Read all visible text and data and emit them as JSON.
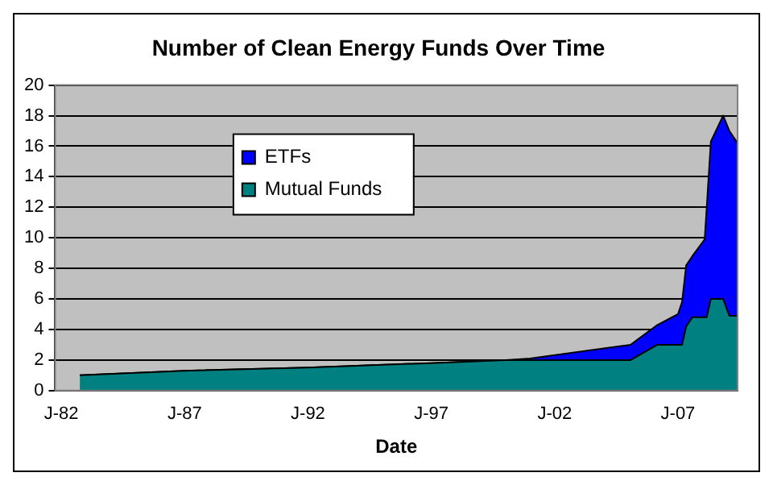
{
  "chart_data": {
    "type": "area",
    "title": "Number of Clean Energy Funds Over Time",
    "xlabel": "Date",
    "stacked": true,
    "legend": "top left",
    "grid": "y",
    "x": [
      "1982-10",
      "1987-01",
      "1992-01",
      "1997-01",
      "2000-01",
      "2001-01",
      "2005-02",
      "2006-03",
      "2007-01",
      "2007-03",
      "2007-05",
      "2007-08",
      "2008-02",
      "2008-03",
      "2008-05",
      "2008-11",
      "2009-02",
      "2009-06"
    ],
    "series": [
      {
        "name": "Mutual Funds",
        "color": "#008080",
        "values": [
          1.0,
          1.3,
          1.5,
          1.8,
          2.0,
          2.0,
          2.0,
          3.0,
          3.0,
          3.0,
          4.2,
          4.8,
          4.8,
          4.8,
          6.0,
          6.0,
          4.9,
          4.9
        ]
      },
      {
        "name": "ETFs",
        "color": "#0000ff",
        "values": [
          0,
          0,
          0,
          0,
          0,
          0.1,
          1.0,
          1.3,
          2.0,
          2.8,
          4.0,
          4.0,
          5.1,
          7.2,
          10.3,
          12.0,
          12.1,
          11.3
        ]
      }
    ],
    "xlim": [
      "1981-10",
      "2009-06"
    ],
    "xticks": [
      {
        "value": "1982-01",
        "label": "J-82"
      },
      {
        "value": "1987-01",
        "label": "J-87"
      },
      {
        "value": "1992-01",
        "label": "J-92"
      },
      {
        "value": "1997-01",
        "label": "J-97"
      },
      {
        "value": "2002-01",
        "label": "J-02"
      },
      {
        "value": "2007-01",
        "label": "J-07"
      }
    ],
    "ylim": [
      0,
      20
    ],
    "yticks": [
      0,
      2,
      4,
      6,
      8,
      10,
      12,
      14,
      16,
      18,
      20
    ]
  }
}
